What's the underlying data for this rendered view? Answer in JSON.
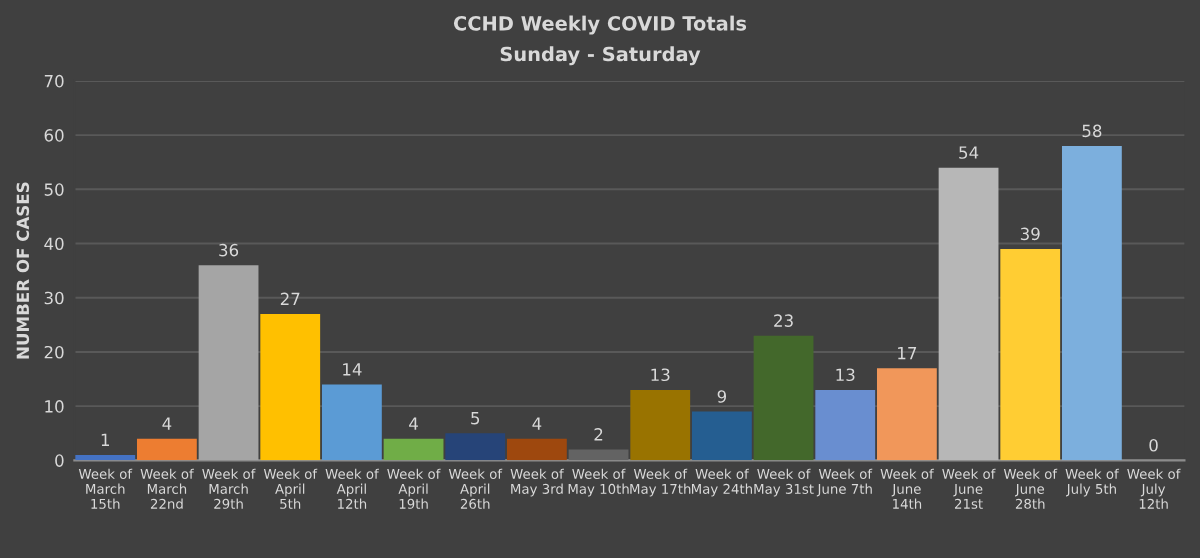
{
  "chart_data": {
    "type": "bar",
    "title": "CCHD Weekly COVID Totals",
    "subtitle": "Sunday - Saturday",
    "ylabel": "NUMBER OF CASES",
    "categories": [
      "Week of March 15th",
      "Week of March 22nd",
      "Week of March 29th",
      "Week of April 5th",
      "Week of April 12th",
      "Week of April 19th",
      "Week of April 26th",
      "Week of May 3rd",
      "Week of May 10th",
      "Week of May 17th",
      "Week of May 24th",
      "Week of May 31st",
      "Week of June 7th",
      "Week of June 14th",
      "Week of June 21st",
      "Week of June 28th",
      "Week of July 5th",
      "Week of July 12th"
    ],
    "values": [
      1,
      4,
      36,
      27,
      14,
      4,
      5,
      4,
      2,
      13,
      9,
      23,
      13,
      17,
      54,
      39,
      58,
      0
    ],
    "colors": [
      "#4472c4",
      "#ed7d31",
      "#a5a5a5",
      "#ffc000",
      "#5b9bd5",
      "#70ad47",
      "#264478",
      "#9e480e",
      "#636363",
      "#997300",
      "#255e91",
      "#43682b",
      "#698ed0",
      "#f1975a",
      "#b7b7b7",
      "#ffcd33",
      "#7cafdd",
      "#335aa1"
    ],
    "ylim": [
      0,
      70
    ],
    "yticks": [
      0,
      10,
      20,
      30,
      40,
      50,
      60,
      70
    ],
    "grid": "y",
    "data_labels": true
  }
}
